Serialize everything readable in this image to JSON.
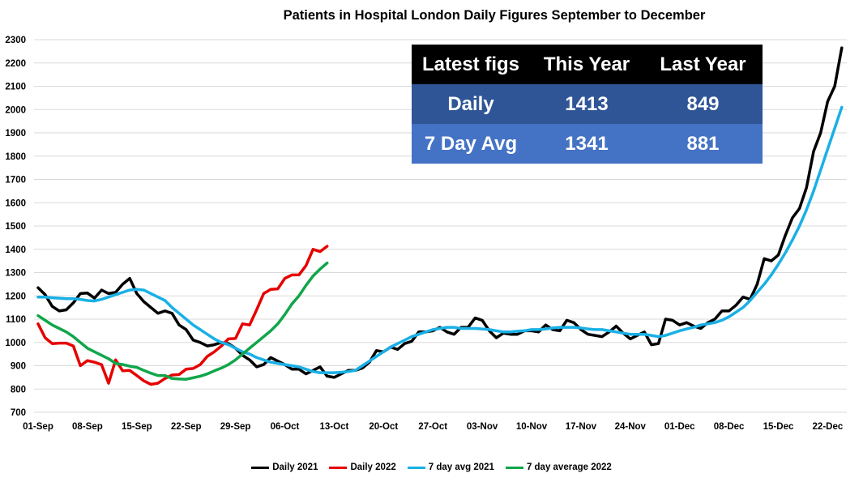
{
  "chart_data": {
    "type": "line",
    "title": "Patients in Hospital  London Daily Figures September to December",
    "xlabel": "",
    "ylabel": "",
    "ylim": [
      700,
      2300
    ],
    "yticks": [
      700,
      800,
      900,
      1000,
      1100,
      1200,
      1300,
      1400,
      1500,
      1600,
      1700,
      1800,
      1900,
      2000,
      2100,
      2200,
      2300
    ],
    "xtick_labels": [
      "01-Sep",
      "08-Sep",
      "15-Sep",
      "22-Sep",
      "29-Sep",
      "06-Oct",
      "13-Oct",
      "20-Oct",
      "27-Oct",
      "03-Nov",
      "10-Nov",
      "17-Nov",
      "24-Nov",
      "01-Dec",
      "08-Dec",
      "15-Dec",
      "22-Dec"
    ],
    "x_start": "01-Sep",
    "x_step_days": 1,
    "grid": true,
    "legend_position": "bottom",
    "series": [
      {
        "name": "Daily 2021",
        "color": "#000000",
        "values": [
          1235,
          1205,
          1155,
          1135,
          1140,
          1170,
          1210,
          1212,
          1190,
          1225,
          1210,
          1215,
          1250,
          1275,
          1210,
          1175,
          1150,
          1125,
          1135,
          1125,
          1075,
          1055,
          1010,
          1000,
          985,
          990,
          1000,
          995,
          975,
          945,
          925,
          895,
          905,
          935,
          920,
          905,
          885,
          885,
          865,
          880,
          895,
          855,
          850,
          865,
          880,
          880,
          890,
          915,
          965,
          960,
          980,
          970,
          995,
          1005,
          1045,
          1045,
          1050,
          1065,
          1045,
          1035,
          1065,
          1065,
          1105,
          1095,
          1050,
          1020,
          1040,
          1035,
          1035,
          1050,
          1050,
          1045,
          1075,
          1055,
          1050,
          1095,
          1085,
          1055,
          1035,
          1030,
          1025,
          1045,
          1070,
          1040,
          1015,
          1030,
          1045,
          990,
          995,
          1100,
          1095,
          1075,
          1085,
          1070,
          1060,
          1085,
          1100,
          1135,
          1135,
          1160,
          1195,
          1185,
          1250,
          1360,
          1350,
          1375,
          1460,
          1535,
          1575,
          1665,
          1820,
          1900,
          2035,
          2100,
          2265
        ]
      },
      {
        "name": "Daily 2022",
        "color": "#e60000",
        "values": [
          1080,
          1020,
          995,
          997,
          997,
          985,
          900,
          922,
          915,
          905,
          825,
          925,
          878,
          880,
          858,
          835,
          820,
          825,
          845,
          860,
          862,
          885,
          888,
          905,
          940,
          960,
          985,
          1015,
          1017,
          1080,
          1075,
          1140,
          1210,
          1228,
          1230,
          1275,
          1290,
          1290,
          1330,
          1400,
          1390,
          1413
        ]
      },
      {
        "name": "7 day avg 2021",
        "color": "#19b0e6",
        "values": [
          1195,
          1195,
          1192,
          1190,
          1188,
          1188,
          1185,
          1180,
          1178,
          1185,
          1195,
          1205,
          1215,
          1225,
          1228,
          1225,
          1210,
          1195,
          1180,
          1150,
          1125,
          1100,
          1075,
          1055,
          1035,
          1015,
          1000,
          990,
          975,
          960,
          950,
          935,
          925,
          915,
          910,
          905,
          900,
          895,
          885,
          875,
          870,
          870,
          870,
          872,
          875,
          880,
          900,
          920,
          940,
          960,
          980,
          995,
          1010,
          1025,
          1035,
          1045,
          1055,
          1060,
          1065,
          1065,
          1060,
          1060,
          1060,
          1058,
          1055,
          1050,
          1045,
          1045,
          1048,
          1050,
          1055,
          1055,
          1058,
          1062,
          1065,
          1065,
          1065,
          1062,
          1058,
          1055,
          1055,
          1050,
          1045,
          1040,
          1035,
          1035,
          1035,
          1030,
          1025,
          1030,
          1040,
          1050,
          1058,
          1065,
          1075,
          1080,
          1085,
          1095,
          1110,
          1130,
          1150,
          1180,
          1215,
          1250,
          1290,
          1335,
          1385,
          1440,
          1500,
          1570,
          1650,
          1740,
          1830,
          1920,
          2010
        ]
      },
      {
        "name": "7 day average 2022",
        "color": "#10a64a",
        "values": [
          1115,
          1095,
          1075,
          1060,
          1045,
          1025,
          1000,
          975,
          960,
          945,
          930,
          910,
          905,
          898,
          893,
          880,
          868,
          858,
          858,
          845,
          843,
          842,
          848,
          855,
          865,
          878,
          890,
          905,
          925,
          950,
          975,
          1000,
          1025,
          1050,
          1080,
          1120,
          1165,
          1200,
          1245,
          1285,
          1315,
          1341
        ]
      }
    ]
  },
  "table": {
    "headers": [
      "Latest figs",
      "This Year",
      "Last Year"
    ],
    "rows": [
      [
        "Daily",
        "1413",
        "849"
      ],
      [
        "7 Day Avg",
        "1341",
        "881"
      ]
    ]
  }
}
